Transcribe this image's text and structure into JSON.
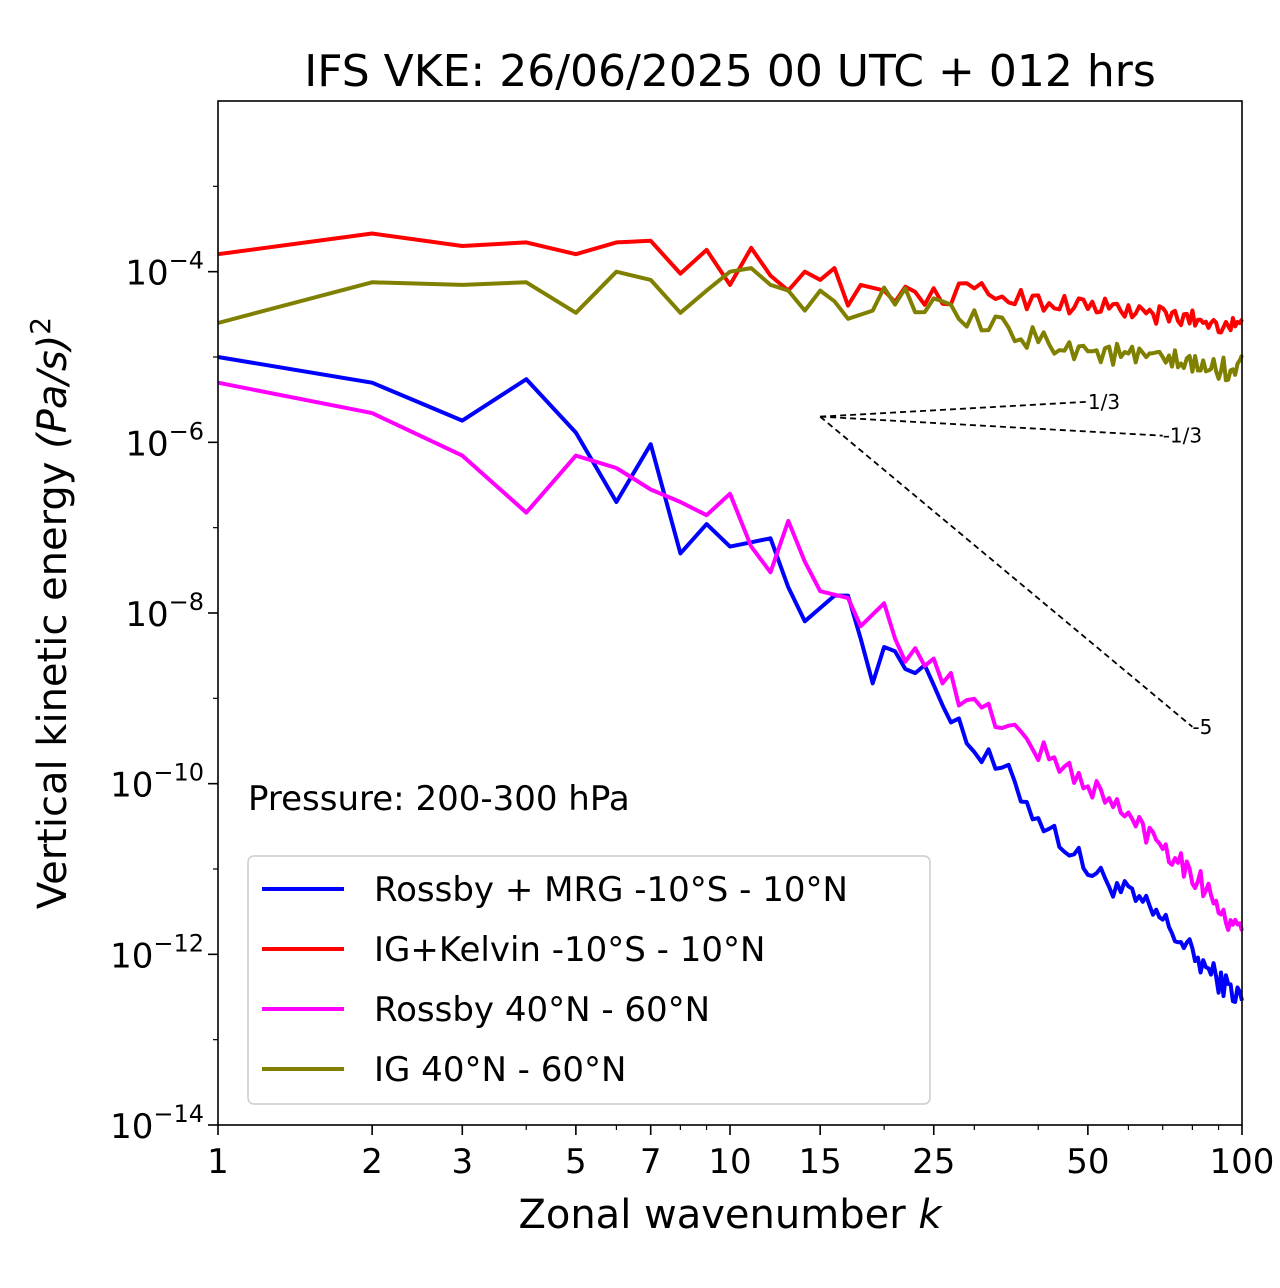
{
  "chart_data": {
    "type": "line",
    "title": "IFS VKE: 26/06/2025 00 UTC + 012 hrs",
    "xlabel": "Zonal wavenumber k",
    "xlabel_prefix": "Zonal wavenumber ",
    "xlabel_var": "k",
    "ylabel_prefix": "Vertical kinetic energy ",
    "ylabel_var": "(Pa/s)",
    "ylabel_exp": "2",
    "xscale": "log",
    "yscale": "log",
    "xlim": [
      1,
      100
    ],
    "ylim": [
      1e-14,
      0.01
    ],
    "x_ticks": [
      1,
      2,
      3,
      5,
      7,
      10,
      15,
      25,
      50,
      100
    ],
    "x_tick_labels": [
      "1",
      "2",
      "3",
      "5",
      "7",
      "10",
      "15",
      "25",
      "50",
      "100"
    ],
    "y_ticks": [
      -14,
      -12,
      -10,
      -8,
      -6,
      -4
    ],
    "y_tick_base": "10",
    "y_tick_exponents": [
      "−14",
      "−12",
      "−10",
      "−8",
      "−6",
      "−4"
    ],
    "annotation": "Pressure: 200-300 hPa",
    "legend_position": "lower-left",
    "grid": false,
    "reference_slopes": [
      {
        "label": "1/3",
        "slope": 0.3333,
        "x0": 15,
        "y0": 2e-06,
        "x1": 50
      },
      {
        "label": "-1/3",
        "slope": -0.3333,
        "x0": 15,
        "y0": 2e-06,
        "x1": 70
      },
      {
        "label": "-5",
        "slope": -5,
        "x0": 15,
        "y0": 2e-06,
        "x1": 80
      }
    ],
    "series": [
      {
        "name": "Rossby + MRG -10°S - 10°N",
        "color": "#0000ff",
        "anchors": [
          [
            1,
            1e-05
          ],
          [
            2,
            5e-06
          ],
          [
            3,
            1.8e-06
          ],
          [
            4,
            5.5e-06
          ],
          [
            5,
            1.3e-06
          ],
          [
            6,
            2e-07
          ],
          [
            7,
            9.5e-07
          ],
          [
            8,
            5e-08
          ],
          [
            9,
            1.1e-07
          ],
          [
            10,
            6e-08
          ],
          [
            12,
            7.5e-08
          ],
          [
            13,
            2e-08
          ],
          [
            14,
            8e-09
          ],
          [
            16,
            1.6e-08
          ],
          [
            17,
            1.6e-08
          ],
          [
            18,
            5e-09
          ],
          [
            19,
            1.5e-09
          ],
          [
            20,
            4e-09
          ],
          [
            21,
            5e-09
          ],
          [
            22,
            2.5e-09
          ],
          [
            25,
            1.5e-09
          ],
          [
            28,
            5e-10
          ],
          [
            30,
            2.5e-10
          ],
          [
            35,
            1.2e-10
          ],
          [
            40,
            4e-11
          ],
          [
            45,
            2e-11
          ],
          [
            50,
            1e-11
          ],
          [
            60,
            5e-12
          ],
          [
            70,
            2.5e-12
          ],
          [
            80,
            1e-12
          ],
          [
            90,
            5e-13
          ],
          [
            100,
            3e-13
          ]
        ],
        "noise": 0.15
      },
      {
        "name": "IG+Kelvin -10°S - 10°N",
        "color": "#ff0000",
        "anchors": [
          [
            1,
            0.00016
          ],
          [
            2,
            0.00028
          ],
          [
            3,
            0.0002
          ],
          [
            4,
            0.00022
          ],
          [
            5,
            0.00016
          ],
          [
            6,
            0.00022
          ],
          [
            7,
            0.00023
          ],
          [
            8,
            9.5e-05
          ],
          [
            9,
            0.00018
          ],
          [
            10,
            7e-05
          ],
          [
            11,
            0.00019
          ],
          [
            12,
            9e-05
          ],
          [
            13,
            6e-05
          ],
          [
            14,
            0.0001
          ],
          [
            15,
            8e-05
          ],
          [
            16,
            0.00011
          ],
          [
            17,
            4e-05
          ],
          [
            18,
            7e-05
          ],
          [
            20,
            6e-05
          ],
          [
            25,
            5e-05
          ],
          [
            30,
            6e-05
          ],
          [
            40,
            4.5e-05
          ],
          [
            50,
            4e-05
          ],
          [
            60,
            3.5e-05
          ],
          [
            70,
            3e-05
          ],
          [
            80,
            2.8e-05
          ],
          [
            90,
            2.5e-05
          ],
          [
            100,
            2.2e-05
          ]
        ],
        "noise": 0.12
      },
      {
        "name": "Rossby 40°N - 60°N",
        "color": "#ff00ff",
        "anchors": [
          [
            1,
            5e-06
          ],
          [
            2,
            2.2e-06
          ],
          [
            3,
            7e-07
          ],
          [
            4,
            1.5e-07
          ],
          [
            5,
            7e-07
          ],
          [
            6,
            5e-07
          ],
          [
            7,
            2.8e-07
          ],
          [
            8,
            2e-07
          ],
          [
            9,
            1.4e-07
          ],
          [
            10,
            2.5e-07
          ],
          [
            11,
            6e-08
          ],
          [
            12,
            3e-08
          ],
          [
            13,
            1.2e-07
          ],
          [
            14,
            4e-08
          ],
          [
            15,
            1.8e-08
          ],
          [
            17,
            1.5e-08
          ],
          [
            18,
            7e-09
          ],
          [
            20,
            1.3e-08
          ],
          [
            21,
            7e-09
          ],
          [
            22,
            3e-09
          ],
          [
            25,
            3e-09
          ],
          [
            28,
            1e-09
          ],
          [
            30,
            8e-10
          ],
          [
            35,
            5e-10
          ],
          [
            40,
            2.5e-10
          ],
          [
            45,
            1.5e-10
          ],
          [
            50,
            1e-10
          ],
          [
            60,
            4e-11
          ],
          [
            70,
            2e-11
          ],
          [
            80,
            9e-12
          ],
          [
            90,
            4e-12
          ],
          [
            95,
            2e-12
          ],
          [
            100,
            2e-12
          ]
        ],
        "noise": 0.15
      },
      {
        "name": "IG 40°N - 60°N",
        "color": "#808000",
        "anchors": [
          [
            1,
            2.5e-05
          ],
          [
            2,
            7.5e-05
          ],
          [
            3,
            7e-05
          ],
          [
            4,
            7.5e-05
          ],
          [
            5,
            3.3e-05
          ],
          [
            6,
            0.0001
          ],
          [
            7,
            8e-05
          ],
          [
            8,
            3.3e-05
          ],
          [
            9,
            6e-05
          ],
          [
            10,
            0.0001
          ],
          [
            11,
            0.00011
          ],
          [
            12,
            7e-05
          ],
          [
            13,
            6e-05
          ],
          [
            14,
            3.5e-05
          ],
          [
            15,
            6e-05
          ],
          [
            16,
            4.5e-05
          ],
          [
            17,
            2.8e-05
          ],
          [
            19,
            3.5e-05
          ],
          [
            20,
            6.5e-05
          ],
          [
            25,
            3.5e-05
          ],
          [
            30,
            2.5e-05
          ],
          [
            40,
            1.6e-05
          ],
          [
            50,
            1.2e-05
          ],
          [
            60,
            1e-05
          ],
          [
            70,
            9e-06
          ],
          [
            80,
            8e-06
          ],
          [
            90,
            7e-06
          ],
          [
            100,
            8e-06
          ]
        ],
        "noise": 0.15
      }
    ]
  }
}
